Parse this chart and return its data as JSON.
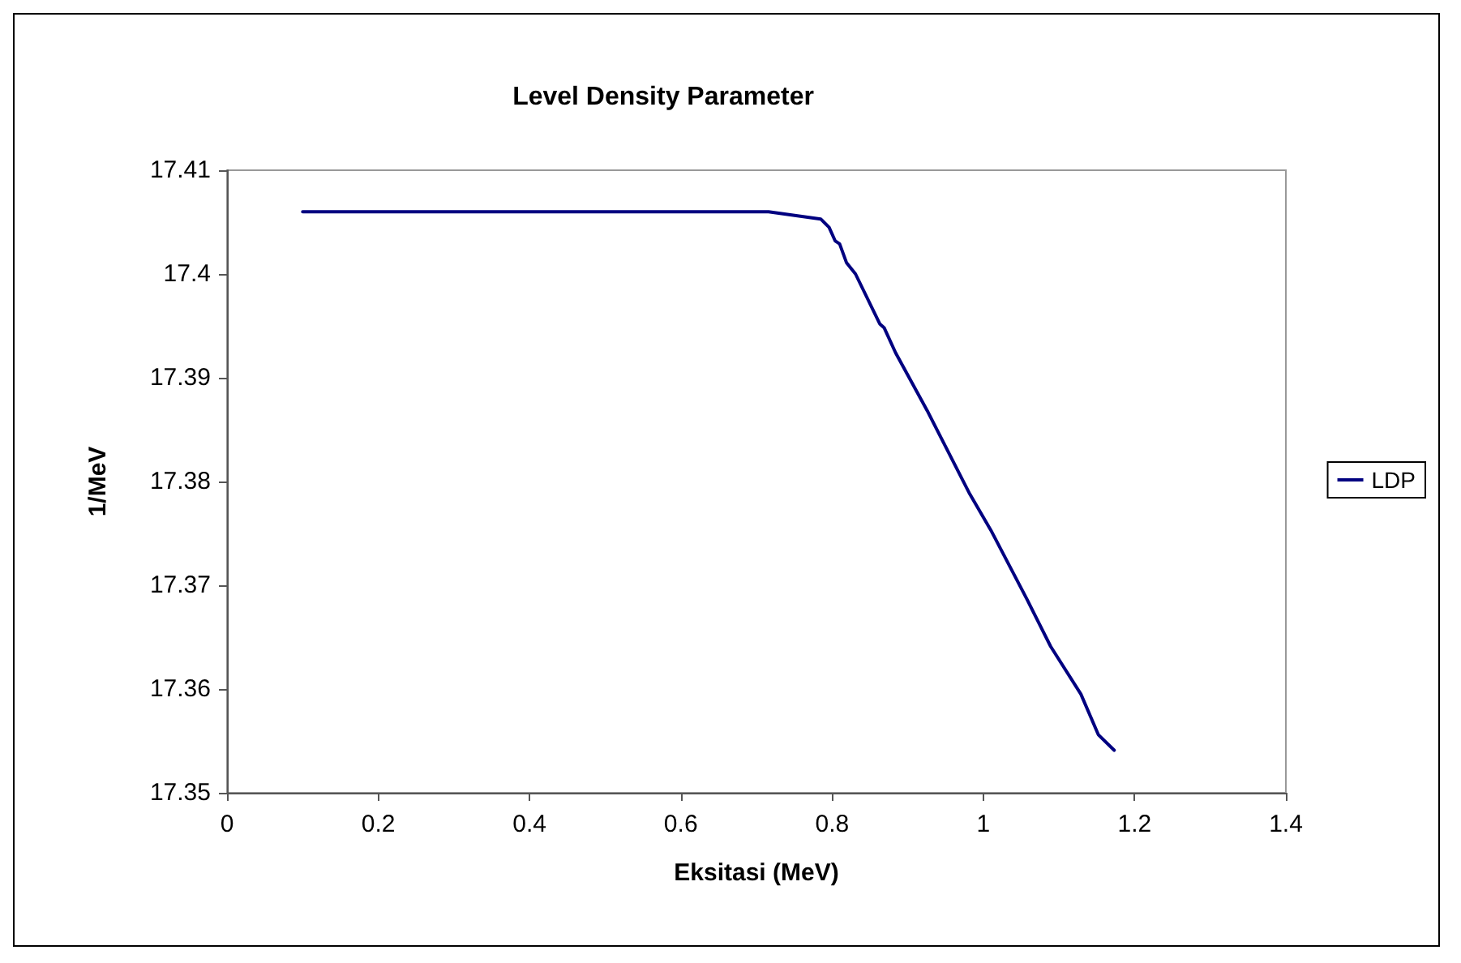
{
  "chart_data": {
    "type": "line",
    "title": "Level Density Parameter",
    "xlabel": "Eksitasi (MeV)",
    "ylabel": "1/MeV",
    "xlim": [
      0,
      1.4
    ],
    "xticks": [
      0,
      0.2,
      0.4,
      0.6,
      0.8,
      1,
      1.2,
      1.4
    ],
    "ylim": [
      17.35,
      17.41
    ],
    "yticks": [
      17.35,
      17.36,
      17.37,
      17.38,
      17.39,
      17.4,
      17.41
    ],
    "grid": false,
    "legend": "right",
    "marker": "none",
    "line_style": "solid",
    "series": [
      {
        "name": "LDP",
        "color": "#000080",
        "x": [
          0.1,
          0.3,
          0.5,
          0.716,
          0.785,
          0.796,
          0.804,
          0.81,
          0.819,
          0.831,
          0.863,
          0.869,
          0.884,
          0.926,
          0.982,
          1.01,
          1.058,
          1.089,
          1.129,
          1.152,
          1.173
        ],
        "values": [
          17.406,
          17.406,
          17.406,
          17.406,
          17.4053,
          17.4045,
          17.4032,
          17.4029,
          17.4011,
          17.4,
          17.3952,
          17.3948,
          17.3924,
          17.3868,
          17.3788,
          17.3753,
          17.3686,
          17.3641,
          17.3595,
          17.3556,
          17.3541
        ]
      }
    ]
  }
}
